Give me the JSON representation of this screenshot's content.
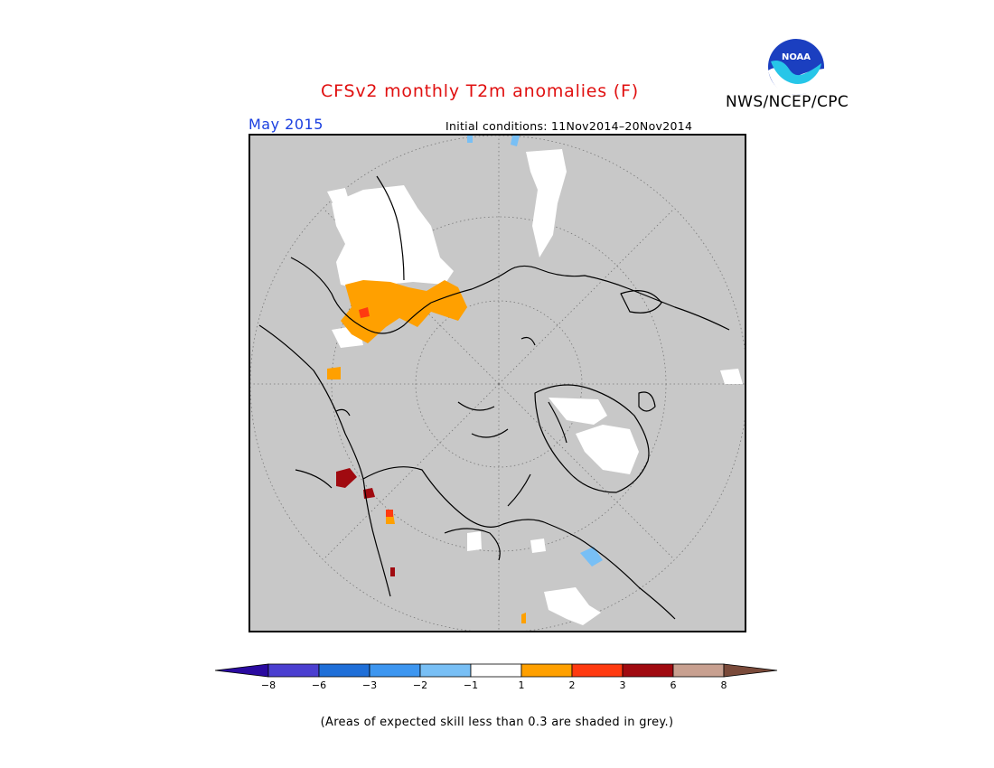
{
  "header": {
    "title": "CFSv2 monthly T2m anomalies (F)",
    "agency": "NWS/NCEP/CPC",
    "logo_text": "NOAA",
    "valid_month": "May 2015",
    "initial_conditions": "Initial conditions: 11Nov2014–20Nov2014"
  },
  "colorbar": {
    "ticks": [
      "−8",
      "−6",
      "−3",
      "−2",
      "−1",
      "1",
      "2",
      "3",
      "6",
      "8"
    ],
    "colors": [
      "#2a0aa0",
      "#4b3fd0",
      "#1f6fd8",
      "#3d96f0",
      "#78bff5",
      "#ffffff",
      "#ffa000",
      "#ff3a10",
      "#a00a10",
      "#c8a090",
      "#7a4a3a"
    ]
  },
  "footnote": "(Areas of expected skill less than 0.3 are shaded in grey.)",
  "colors": {
    "title": "#e01010",
    "month": "#1a3fe0",
    "skill_mask_grey": "#c8c8c8"
  }
}
